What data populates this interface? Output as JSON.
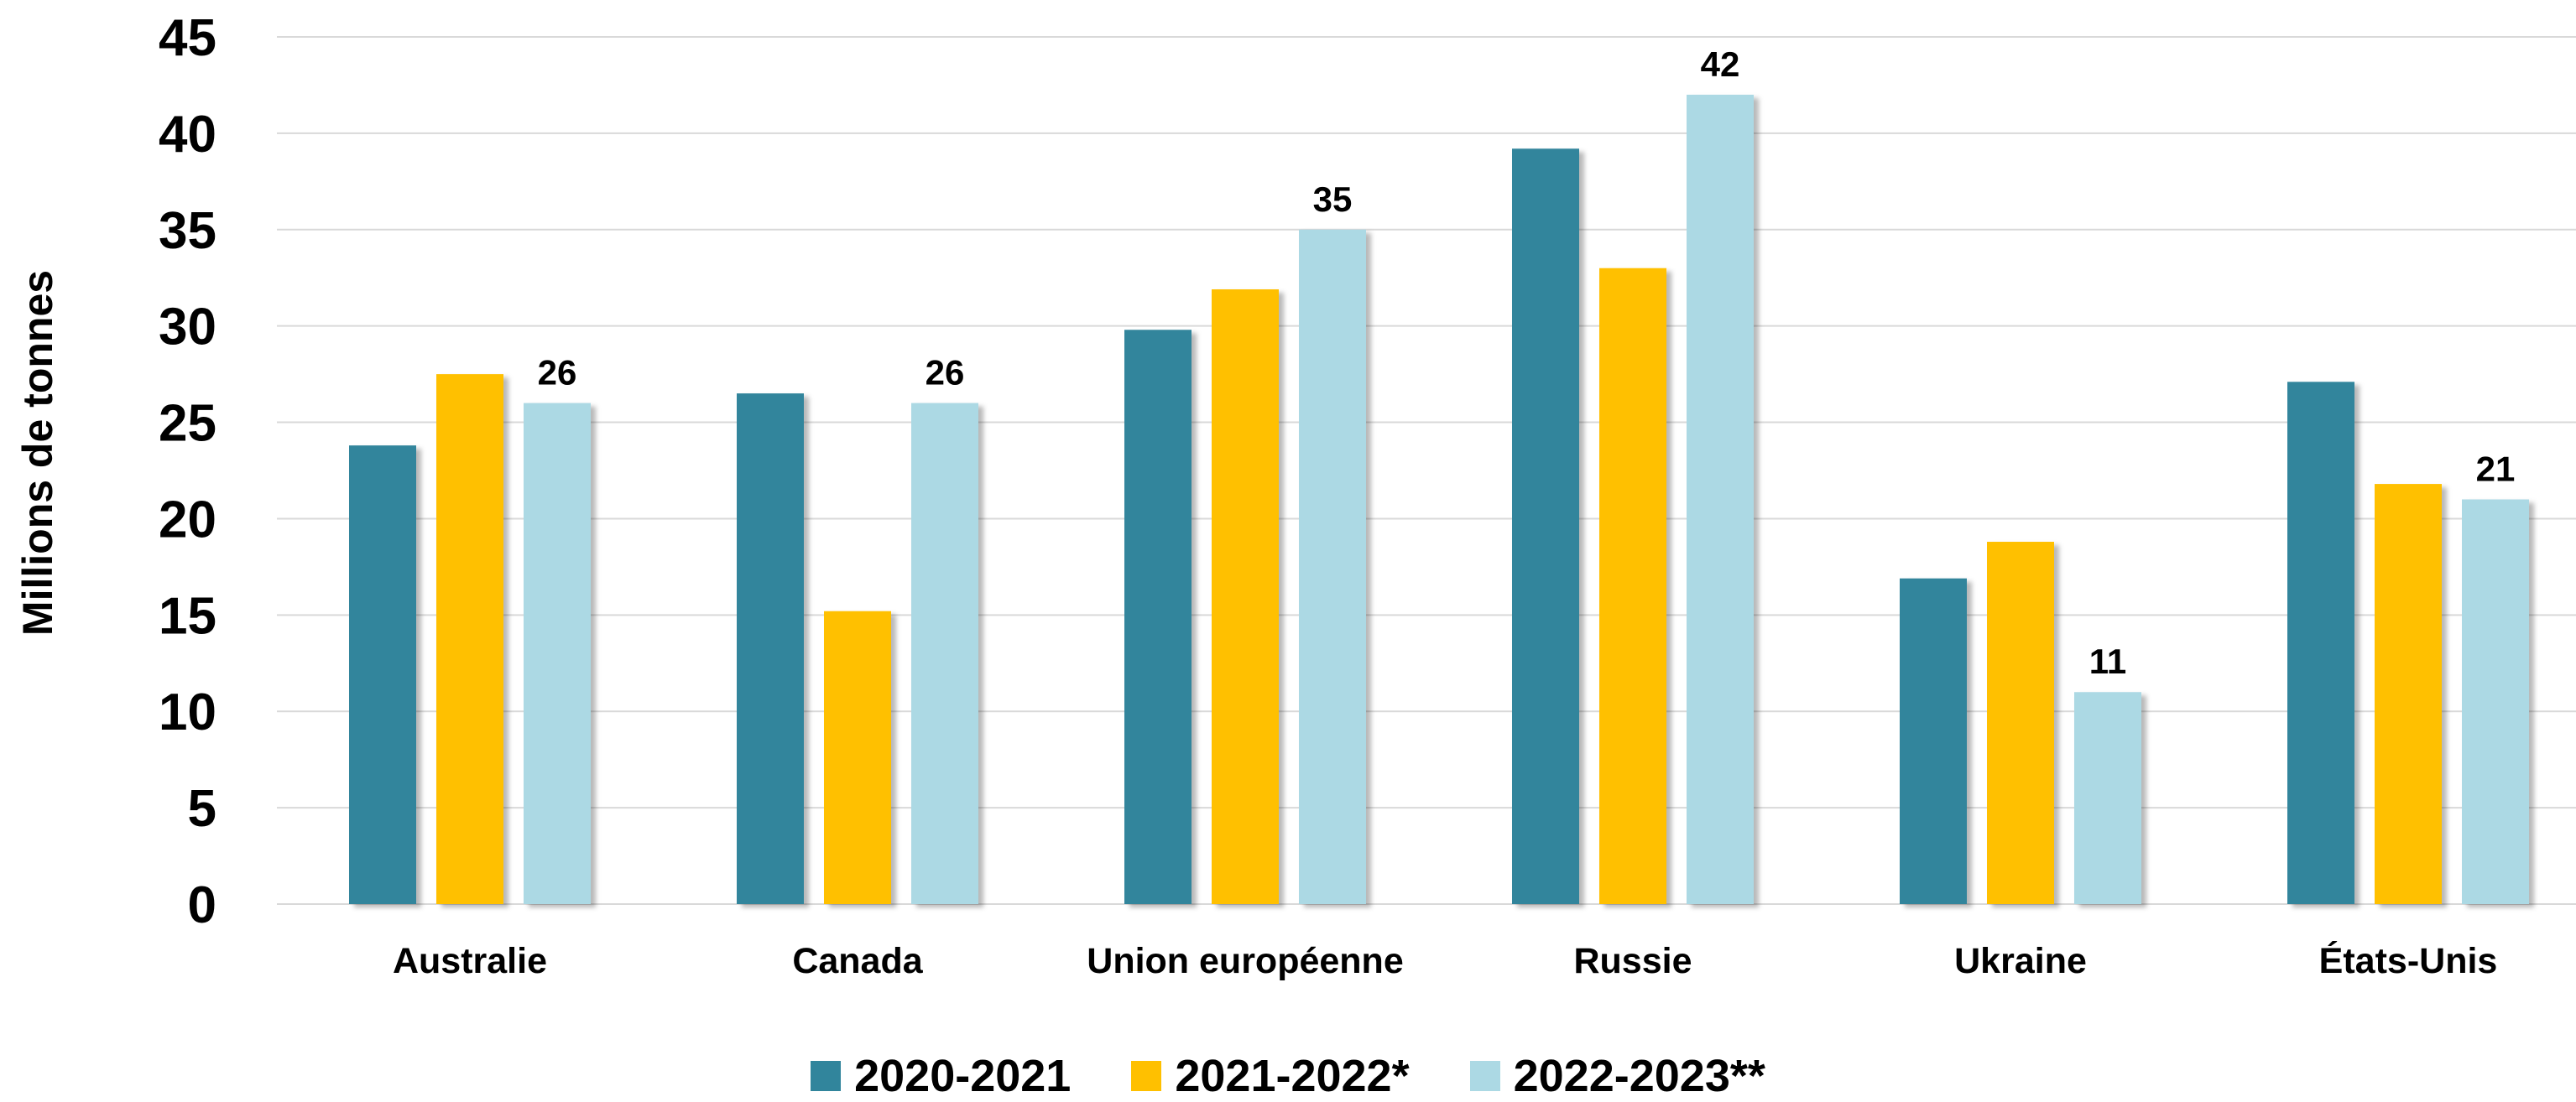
{
  "chart_data": {
    "type": "bar",
    "ylabel": "Millions de tonnes",
    "ylim": [
      0,
      45
    ],
    "yticks": [
      0,
      5,
      10,
      15,
      20,
      25,
      30,
      35,
      40,
      45
    ],
    "grid": true,
    "legend_position": "bottom-center",
    "categories": [
      "Australie",
      "Canada",
      "Union européenne",
      "Russie",
      "Ukraine",
      "États-Unis"
    ],
    "series": [
      {
        "name": "2020-2021",
        "color": "#31859c",
        "values": [
          23.8,
          26.5,
          29.8,
          39.2,
          16.9,
          27.1
        ]
      },
      {
        "name": "2021-2022*",
        "color": "#ffc000",
        "values": [
          27.5,
          15.2,
          31.9,
          33.0,
          18.8,
          21.8
        ]
      },
      {
        "name": "2022-2023**",
        "color": "#acd9e4",
        "values": [
          26,
          26,
          35,
          42,
          11,
          21
        ]
      }
    ],
    "data_labels": {
      "series_index": 2,
      "texts": [
        "26",
        "26",
        "35",
        "42",
        "11",
        "21"
      ]
    }
  }
}
